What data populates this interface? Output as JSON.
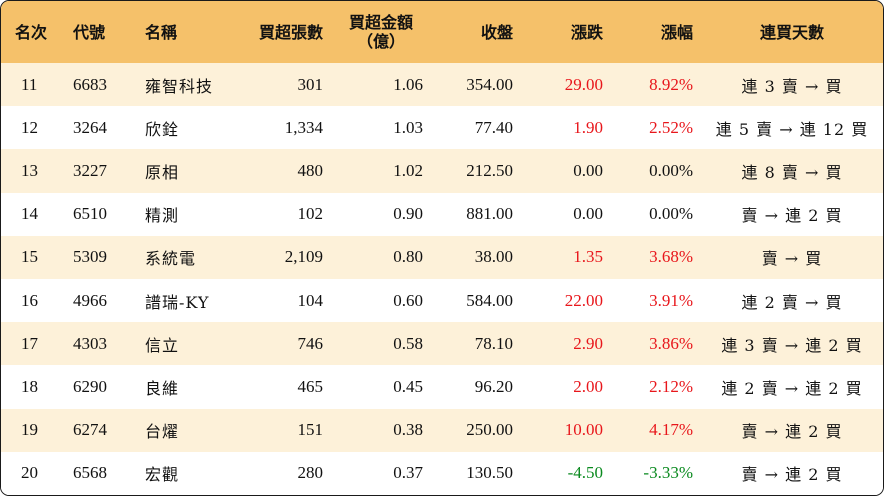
{
  "header": {
    "rank": "名次",
    "code": "代號",
    "name": "名稱",
    "net_buy_lots": "買超張數",
    "net_buy_amount_line1": "買超金額",
    "net_buy_amount_line2": "（億）",
    "close": "收盤",
    "change": "漲跌",
    "change_pct": "漲幅",
    "consecutive_days": "連買天數"
  },
  "rows": [
    {
      "rank": "11",
      "code": "6683",
      "name": "雍智科技",
      "lots": "301",
      "amount": "1.06",
      "close": "354.00",
      "change": "29.00",
      "pct": "8.92%",
      "days": "連 3 賣 → 買",
      "trend": "up"
    },
    {
      "rank": "12",
      "code": "3264",
      "name": "欣銓",
      "lots": "1,334",
      "amount": "1.03",
      "close": "77.40",
      "change": "1.90",
      "pct": "2.52%",
      "days": "連 5 賣 → 連 12 買",
      "trend": "up"
    },
    {
      "rank": "13",
      "code": "3227",
      "name": "原相",
      "lots": "480",
      "amount": "1.02",
      "close": "212.50",
      "change": "0.00",
      "pct": "0.00%",
      "days": "連 8 賣 → 買",
      "trend": "flat"
    },
    {
      "rank": "14",
      "code": "6510",
      "name": "精測",
      "lots": "102",
      "amount": "0.90",
      "close": "881.00",
      "change": "0.00",
      "pct": "0.00%",
      "days": "賣 → 連 2 買",
      "trend": "flat"
    },
    {
      "rank": "15",
      "code": "5309",
      "name": "系統電",
      "lots": "2,109",
      "amount": "0.80",
      "close": "38.00",
      "change": "1.35",
      "pct": "3.68%",
      "days": "賣 → 買",
      "trend": "up"
    },
    {
      "rank": "16",
      "code": "4966",
      "name": "譜瑞-KY",
      "lots": "104",
      "amount": "0.60",
      "close": "584.00",
      "change": "22.00",
      "pct": "3.91%",
      "days": "連 2 賣 → 買",
      "trend": "up"
    },
    {
      "rank": "17",
      "code": "4303",
      "name": "信立",
      "lots": "746",
      "amount": "0.58",
      "close": "78.10",
      "change": "2.90",
      "pct": "3.86%",
      "days": "連 3 賣 → 連 2 買",
      "trend": "up"
    },
    {
      "rank": "18",
      "code": "6290",
      "name": "良維",
      "lots": "465",
      "amount": "0.45",
      "close": "96.20",
      "change": "2.00",
      "pct": "2.12%",
      "days": "連 2 賣 → 連 2 買",
      "trend": "up"
    },
    {
      "rank": "19",
      "code": "6274",
      "name": "台燿",
      "lots": "151",
      "amount": "0.38",
      "close": "250.00",
      "change": "10.00",
      "pct": "4.17%",
      "days": "賣 → 連 2 買",
      "trend": "up"
    },
    {
      "rank": "20",
      "code": "6568",
      "name": "宏觀",
      "lots": "280",
      "amount": "0.37",
      "close": "130.50",
      "change": "-4.50",
      "pct": "-3.33%",
      "days": "賣 → 連 2 買",
      "trend": "down"
    }
  ],
  "colors": {
    "header_bg": "#f5c16a",
    "stripe_bg": "#fdf1d9",
    "up": "#e8161b",
    "down": "#0a8a1f"
  }
}
